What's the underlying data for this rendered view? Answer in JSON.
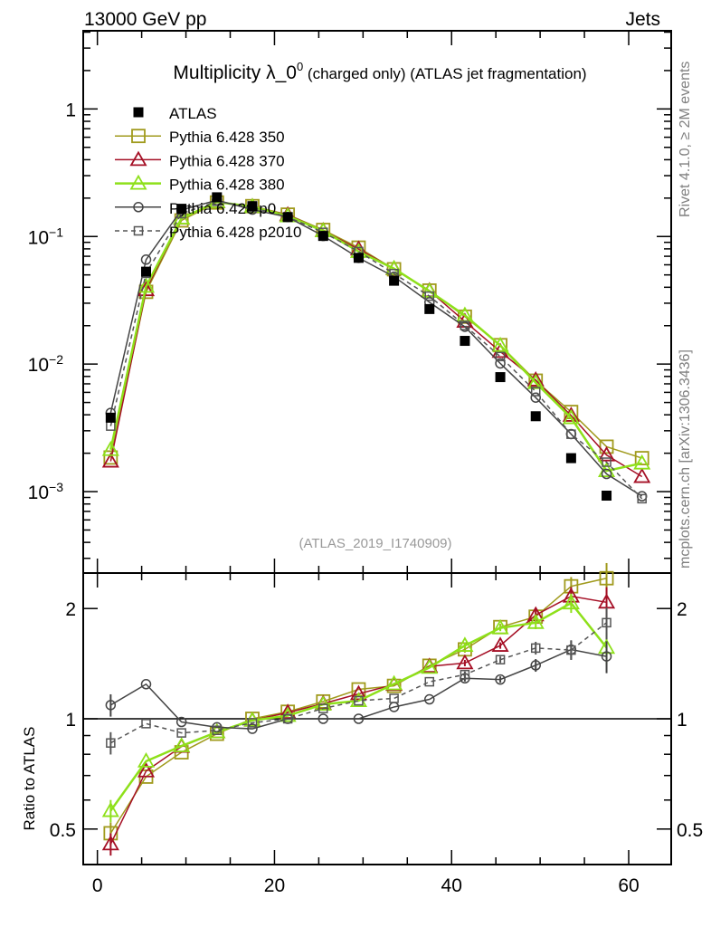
{
  "header": {
    "left": "13000 GeV pp",
    "right": "Jets",
    "title_main": "Multiplicity λ_0",
    "title_sup": "0",
    "title_rest": " (charged only) (ATLAS jet fragmentation)",
    "side_top": "Rivet 4.1.0, ≥ 2M events",
    "side_bottom": "mcplots.cern.ch [arXiv:1306.3436]",
    "analysis": "(ATLAS_2019_I1740909)"
  },
  "chart_data": {
    "type": "line",
    "title": "Multiplicity λ_0^0 (charged only) (ATLAS jet fragmentation)",
    "xlabel": "",
    "ylabel_ratio": "Ratio to ATLAS",
    "xlim": [
      -1.6,
      64.8
    ],
    "ylim_main": [
      0.00023,
      4.1
    ],
    "ylim_ratio": [
      0.4,
      2.5
    ],
    "yscale": "log",
    "x_ticks": [
      0,
      20,
      40,
      60
    ],
    "x_tick_labels": [
      "0",
      "20",
      "40",
      "60"
    ],
    "y_ticks_main": [
      1,
      0.1,
      0.01,
      0.001
    ],
    "y_tick_labels_main": [
      {
        "b": "1",
        "e": ""
      },
      {
        "b": "10",
        "e": "−1"
      },
      {
        "b": "10",
        "e": "−2"
      },
      {
        "b": "10",
        "e": "−3"
      }
    ],
    "y_ticks_ratio": [
      0.5,
      1,
      2
    ],
    "y_tick_labels_ratio": [
      "0.5",
      "1",
      "2"
    ],
    "legend_placement": "top-left",
    "x": [
      1.5,
      5.5,
      9.5,
      13.5,
      17.5,
      21.5,
      25.5,
      29.5,
      33.5,
      37.5,
      41.5,
      45.5,
      49.5,
      53.5,
      57.5,
      61.5
    ],
    "data": {
      "name": "ATLAS",
      "values": [
        0.0038,
        0.053,
        0.165,
        0.203,
        0.173,
        0.142,
        0.101,
        0.068,
        0.045,
        0.027,
        0.0152,
        0.0079,
        0.0039,
        0.00183,
        0.00093
      ]
    },
    "series": [
      {
        "name": "Pythia 6.428 350",
        "color": "#a09a1c",
        "marker": "square",
        "dashed": false,
        "ratio": [
          0.487,
          0.695,
          0.81,
          0.91,
          1.0,
          1.045,
          1.115,
          1.203,
          1.23,
          1.396,
          1.547,
          1.78,
          1.9,
          2.3,
          2.42
        ],
        "last_bin_value": 0.00183
      },
      {
        "name": "Pythia 6.428 370",
        "color": "#a50f25",
        "marker": "triangle",
        "dashed": false,
        "ratio": [
          0.455,
          0.72,
          0.84,
          0.92,
          0.99,
          1.04,
          1.1,
          1.17,
          1.24,
          1.39,
          1.42,
          1.585,
          1.92,
          2.16,
          2.08
        ],
        "last_bin_value": 0.00131
      },
      {
        "name": "Pythia 6.428 380",
        "color": "#8ee01a",
        "marker": "triangle",
        "dashed": false,
        "ratio": [
          0.561,
          0.766,
          0.843,
          0.92,
          0.99,
          1.02,
          1.095,
          1.12,
          1.245,
          1.38,
          1.585,
          1.77,
          1.83,
          2.07,
          1.565
        ],
        "last_bin_value": 0.00167
      },
      {
        "name": "Pythia 6.428 p0",
        "color": "#444444",
        "marker": "circle",
        "dashed": false,
        "ratio": [
          1.09,
          1.243,
          0.98,
          0.948,
          0.939,
          1.0,
          1.0,
          1.0,
          1.077,
          1.13,
          1.29,
          1.28,
          1.4,
          1.545,
          1.48
        ],
        "last_bin_value": 0.00092
      },
      {
        "name": "Pythia 6.428 p2010",
        "color": "#555555",
        "marker": "small-square",
        "dashed": true,
        "ratio": [
          0.859,
          0.97,
          0.915,
          0.93,
          0.975,
          1.0,
          1.067,
          1.12,
          1.137,
          1.262,
          1.32,
          1.45,
          1.56,
          1.54,
          1.83
        ],
        "last_bin_value": 0.00088
      }
    ],
    "ratio_rel_err": [
      0.07,
      0.01,
      0.01,
      0.01,
      0.01,
      0.01,
      0.01,
      0.01,
      0.01,
      0.01,
      0.02,
      0.02,
      0.04,
      0.06,
      0.1
    ]
  }
}
